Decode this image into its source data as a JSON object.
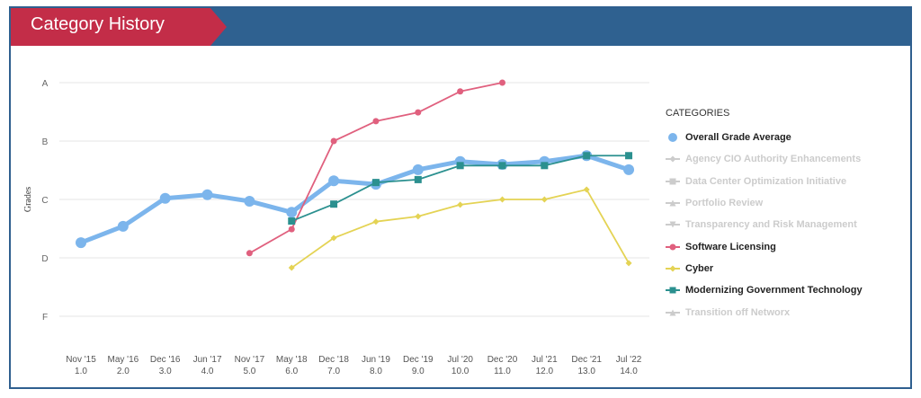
{
  "header": {
    "title": "Category History"
  },
  "chart_data": {
    "type": "line",
    "ylabel": "Grades",
    "y_ticks": [
      {
        "label": "A",
        "value": 4
      },
      {
        "label": "B",
        "value": 3
      },
      {
        "label": "C",
        "value": 2
      },
      {
        "label": "D",
        "value": 1
      },
      {
        "label": "F",
        "value": 0
      }
    ],
    "ylim": [
      0,
      4
    ],
    "x_ticks": [
      {
        "x": 1,
        "date": "Nov '15",
        "num": "1.0"
      },
      {
        "x": 2,
        "date": "May '16",
        "num": "2.0"
      },
      {
        "x": 3,
        "date": "Dec '16",
        "num": "3.0"
      },
      {
        "x": 4,
        "date": "Jun '17",
        "num": "4.0"
      },
      {
        "x": 5,
        "date": "Nov '17",
        "num": "5.0"
      },
      {
        "x": 6,
        "date": "May '18",
        "num": "6.0"
      },
      {
        "x": 7,
        "date": "Dec '18",
        "num": "7.0"
      },
      {
        "x": 8,
        "date": "Jun '19",
        "num": "8.0"
      },
      {
        "x": 9,
        "date": "Dec '19",
        "num": "9.0"
      },
      {
        "x": 10,
        "date": "Jul '20",
        "num": "10.0"
      },
      {
        "x": 11,
        "date": "Dec '20",
        "num": "11.0"
      },
      {
        "x": 12,
        "date": "Jul '21",
        "num": "12.0"
      },
      {
        "x": 13,
        "date": "Dec '21",
        "num": "13.0"
      },
      {
        "x": 14,
        "date": "Jul '22",
        "num": "14.0"
      }
    ],
    "grid": true,
    "legend_title": "CATEGORIES",
    "legend_placement": "right",
    "series": [
      {
        "name": "Overall Grade Average",
        "color": "#7cb5ec",
        "marker": "circle",
        "visible": true,
        "x": [
          1,
          2,
          3,
          4,
          5,
          6,
          7,
          8,
          9,
          10,
          11,
          12,
          13,
          14
        ],
        "values": [
          1.26,
          1.54,
          2.02,
          2.08,
          1.97,
          1.78,
          2.32,
          2.26,
          2.51,
          2.65,
          2.6,
          2.65,
          2.75,
          2.51
        ]
      },
      {
        "name": "Agency CIO Authority Enhancements",
        "color": "#cccccc",
        "marker": "diamond",
        "visible": false,
        "x": [],
        "values": []
      },
      {
        "name": "Data Center Optimization Initiative",
        "color": "#cccccc",
        "marker": "square",
        "visible": false,
        "x": [],
        "values": []
      },
      {
        "name": "Portfolio Review",
        "color": "#cccccc",
        "marker": "triangle",
        "visible": false,
        "x": [],
        "values": []
      },
      {
        "name": "Transparency and Risk Management",
        "color": "#cccccc",
        "marker": "triangle-down",
        "visible": false,
        "x": [],
        "values": []
      },
      {
        "name": "Software Licensing",
        "color": "#e0607e",
        "marker": "circle",
        "visible": true,
        "x": [
          5,
          6,
          7,
          8,
          9,
          10,
          11
        ],
        "values": [
          1.08,
          1.49,
          3.0,
          3.34,
          3.49,
          3.85,
          4.0
        ]
      },
      {
        "name": "Cyber",
        "color": "#e4d354",
        "marker": "diamond",
        "visible": true,
        "x": [
          6,
          7,
          8,
          9,
          10,
          11,
          12,
          13,
          14
        ],
        "values": [
          0.83,
          1.34,
          1.62,
          1.71,
          1.91,
          2.0,
          2.0,
          2.17,
          0.91
        ]
      },
      {
        "name": "Modernizing Government Technology",
        "color": "#2b908f",
        "marker": "square",
        "visible": true,
        "x": [
          6,
          7,
          8,
          9,
          10,
          11,
          12,
          13,
          14
        ],
        "values": [
          1.63,
          1.92,
          2.29,
          2.34,
          2.58,
          2.58,
          2.58,
          2.75,
          2.75
        ]
      },
      {
        "name": "Transition off Networx",
        "color": "#cccccc",
        "marker": "triangle",
        "visible": false,
        "x": [],
        "values": []
      }
    ]
  }
}
